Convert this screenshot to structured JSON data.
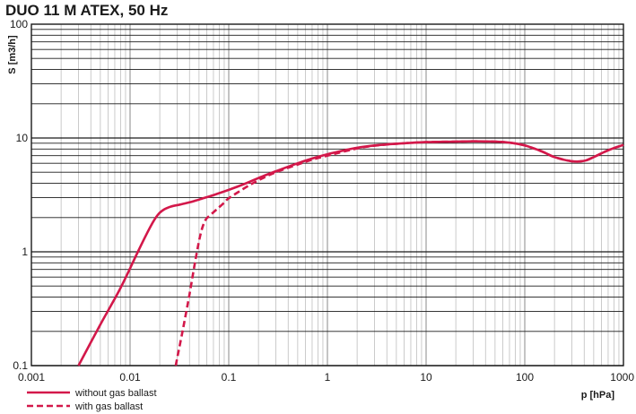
{
  "chart_data": {
    "type": "line",
    "title": "DUO 11 M ATEX, 50 Hz",
    "xlabel": "p [hPa]",
    "ylabel": "S [m3/h]",
    "xscale": "log",
    "yscale": "log",
    "xlim": [
      0.001,
      1000
    ],
    "ylim": [
      0.1,
      100
    ],
    "x_ticks": [
      {
        "value": 0.001,
        "label": "0.001"
      },
      {
        "value": 0.01,
        "label": "0.01"
      },
      {
        "value": 0.1,
        "label": "0.1"
      },
      {
        "value": 1,
        "label": "1"
      },
      {
        "value": 10,
        "label": "10"
      },
      {
        "value": 100,
        "label": "100"
      },
      {
        "value": 1000,
        "label": "1000"
      }
    ],
    "y_ticks": [
      {
        "value": 0.1,
        "label": "0.1"
      },
      {
        "value": 1,
        "label": "1"
      },
      {
        "value": 10,
        "label": "10"
      },
      {
        "value": 100,
        "label": "100"
      }
    ],
    "grid": true,
    "legend_position": "bottom-left",
    "series": [
      {
        "name": "without gas ballast",
        "style": "solid",
        "color": "#d3184a",
        "x": [
          0.003,
          0.005,
          0.008,
          0.012,
          0.016,
          0.019,
          0.022,
          0.026,
          0.032,
          0.04,
          0.05,
          0.07,
          0.1,
          0.15,
          0.2,
          0.3,
          0.5,
          0.7,
          1,
          1.5,
          2,
          3,
          5,
          10,
          20,
          30,
          50,
          70,
          100,
          150,
          200,
          300,
          400,
          500,
          700,
          1000
        ],
        "y": [
          0.1,
          0.23,
          0.48,
          1.0,
          1.65,
          2.1,
          2.35,
          2.5,
          2.6,
          2.72,
          2.88,
          3.15,
          3.5,
          4.0,
          4.45,
          5.1,
          6.0,
          6.6,
          7.2,
          7.8,
          8.2,
          8.6,
          8.9,
          9.2,
          9.3,
          9.35,
          9.3,
          9.1,
          8.6,
          7.6,
          6.8,
          6.25,
          6.3,
          6.8,
          7.8,
          8.7
        ]
      },
      {
        "name": "with gas ballast",
        "style": "dashed",
        "color": "#d3184a",
        "x": [
          0.029,
          0.034,
          0.04,
          0.046,
          0.052,
          0.058,
          0.065,
          0.075,
          0.09,
          0.1,
          0.15,
          0.2,
          0.3,
          0.5,
          0.7,
          1,
          2,
          3,
          5,
          10,
          20,
          30,
          50,
          70,
          100,
          150,
          200,
          300,
          400,
          500,
          700,
          1000
        ],
        "y": [
          0.1,
          0.2,
          0.42,
          0.85,
          1.45,
          1.9,
          2.1,
          2.35,
          2.7,
          2.95,
          3.7,
          4.25,
          5.0,
          5.85,
          6.45,
          7.0,
          8.1,
          8.55,
          8.9,
          9.2,
          9.3,
          9.35,
          9.3,
          9.1,
          8.6,
          7.6,
          6.8,
          6.25,
          6.3,
          6.8,
          7.8,
          8.7
        ]
      }
    ]
  }
}
